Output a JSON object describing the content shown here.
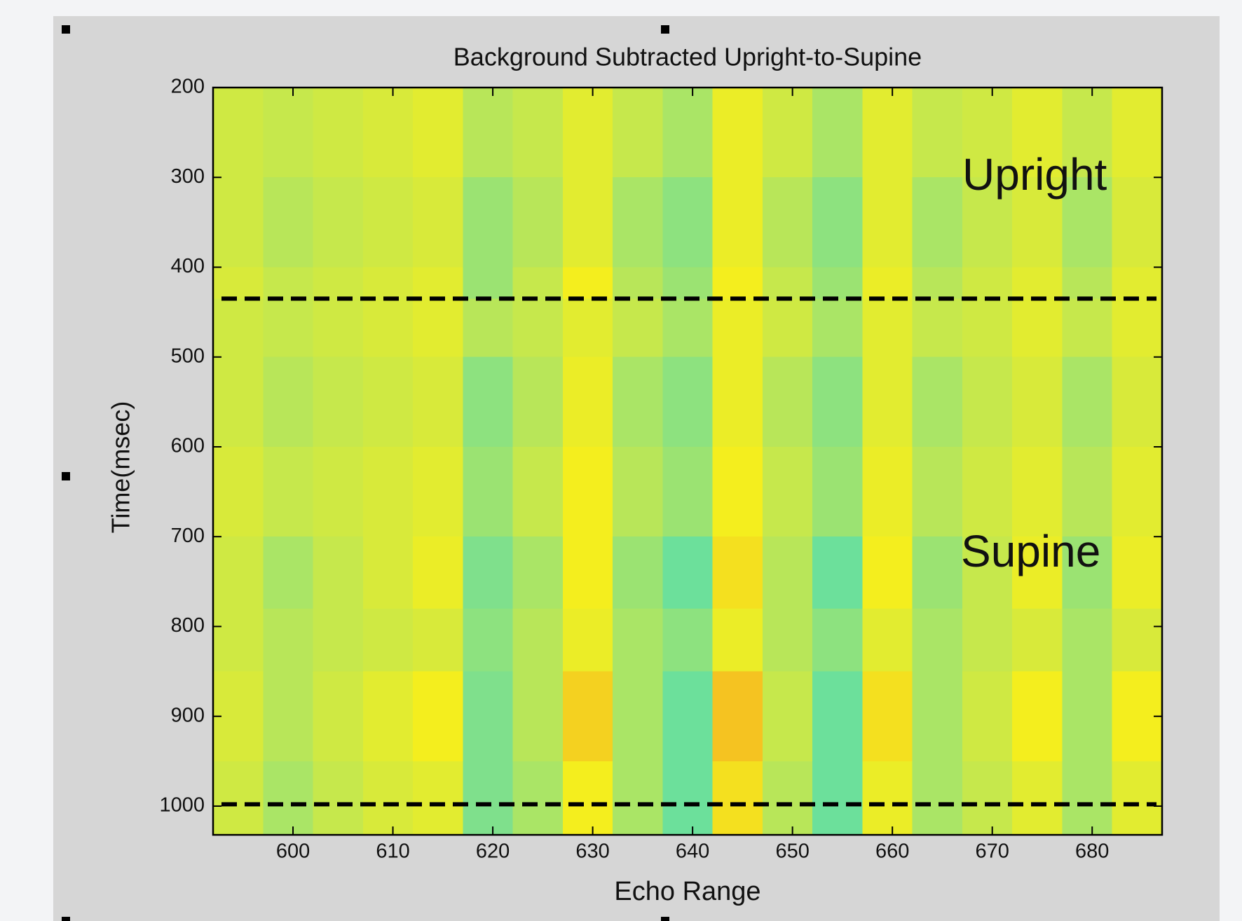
{
  "chart_data": {
    "type": "heatmap",
    "title": "Background Subtracted Upright-to-Supine",
    "x_label": "Echo Range",
    "y_label": "Time(msec)",
    "xlim": [
      592,
      687
    ],
    "ylim": [
      200,
      1032
    ],
    "y_reversed": true,
    "xticks": [
      600,
      610,
      620,
      630,
      640,
      650,
      660,
      670,
      680
    ],
    "yticks": [
      200,
      300,
      400,
      500,
      600,
      700,
      800,
      900,
      1000
    ],
    "xbins": [
      592,
      597,
      602,
      607,
      612,
      617,
      622,
      627,
      632,
      637,
      642,
      647,
      652,
      657,
      662,
      667,
      672,
      677,
      682,
      687
    ],
    "ybins": [
      200,
      300,
      400,
      435,
      500,
      600,
      700,
      780,
      850,
      950,
      1032
    ],
    "clim": [
      -1,
      1
    ],
    "colormap": [
      "#22e0d8",
      "#7fe08c",
      "#c6e84c",
      "#f4ee1e",
      "#f5a623"
    ],
    "z": [
      [
        0.1,
        0.0,
        0.1,
        0.2,
        0.3,
        -0.1,
        0.0,
        0.3,
        0.0,
        -0.2,
        0.4,
        0.1,
        -0.2,
        0.3,
        0.0,
        0.1,
        0.3,
        0.0,
        0.3
      ],
      [
        0.1,
        -0.1,
        0,
        0.1,
        0.2,
        -0.3,
        -0.1,
        0.3,
        -0.2,
        -0.4,
        0.4,
        -0.1,
        -0.4,
        0.3,
        -0.2,
        0,
        0.2,
        -0.2,
        0.2
      ],
      [
        0.2,
        0.0,
        0.1,
        0.2,
        0.3,
        -0.3,
        0.0,
        0.5,
        -0.1,
        -0.3,
        0.5,
        0.0,
        -0.3,
        0.4,
        -0.1,
        0.1,
        0.3,
        -0.1,
        0.3
      ],
      [
        0.1,
        0.0,
        0.1,
        0.2,
        0.3,
        -0.1,
        0.0,
        0.3,
        0.0,
        -0.2,
        0.4,
        0.1,
        -0.2,
        0.3,
        0.0,
        0.1,
        0.3,
        0.0,
        0.3
      ],
      [
        0.1,
        -0.1,
        0,
        0.1,
        0.2,
        -0.4,
        -0.1,
        0.4,
        -0.2,
        -0.4,
        0.4,
        -0.1,
        -0.4,
        0.3,
        -0.2,
        0,
        0.2,
        -0.2,
        0.2
      ],
      [
        0.2,
        0.0,
        0.1,
        0.2,
        0.3,
        -0.3,
        0.0,
        0.5,
        -0.1,
        -0.3,
        0.5,
        0.0,
        -0.3,
        0.4,
        -0.1,
        0.1,
        0.3,
        -0.1,
        0.3
      ],
      [
        0.1,
        -0.2,
        0,
        0.2,
        0.4,
        -0.5,
        -0.2,
        0.5,
        -0.3,
        -0.6,
        0.6,
        -0.1,
        -0.6,
        0.5,
        -0.3,
        0,
        0.4,
        -0.3,
        0.4
      ],
      [
        0.1,
        -0.1,
        0,
        0.1,
        0.2,
        -0.4,
        -0.1,
        0.4,
        -0.2,
        -0.4,
        0.4,
        -0.1,
        -0.4,
        0.3,
        -0.2,
        0,
        0.2,
        -0.2,
        0.2
      ],
      [
        0.2,
        -0.1,
        0.1,
        0.3,
        0.5,
        -0.5,
        -0.1,
        0.7,
        -0.2,
        -0.6,
        0.8,
        0.0,
        -0.6,
        0.6,
        -0.2,
        0.1,
        0.5,
        -0.2,
        0.5
      ],
      [
        0.1,
        -0.2,
        0,
        0.2,
        0.3,
        -0.5,
        -0.2,
        0.5,
        -0.2,
        -0.6,
        0.6,
        -0.1,
        -0.6,
        0.4,
        -0.2,
        0,
        0.3,
        -0.2,
        0.3
      ]
    ],
    "hlines": [
      435,
      998
    ],
    "annotations": [
      "Upright",
      "Supine"
    ]
  }
}
